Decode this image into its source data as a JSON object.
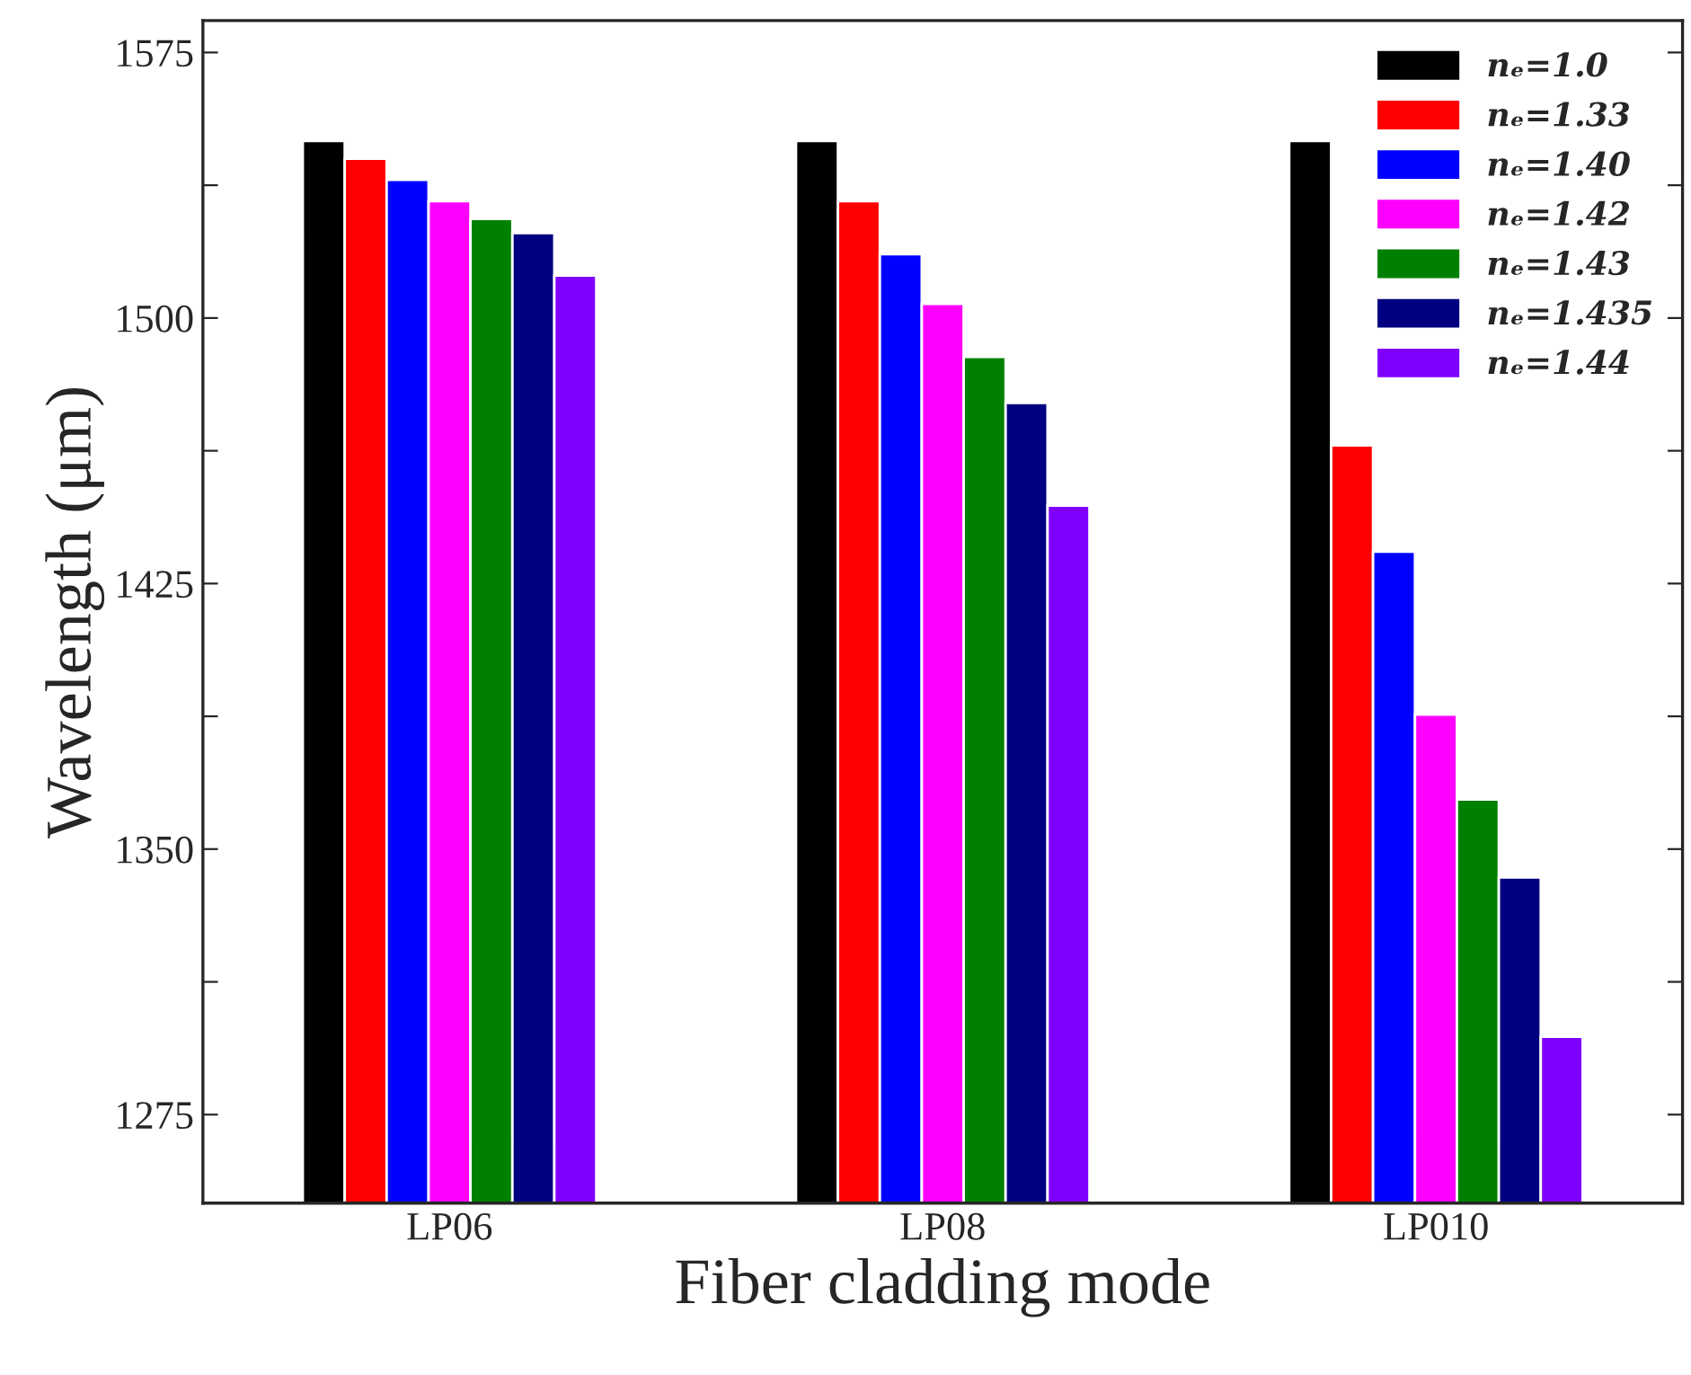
{
  "chart_data": {
    "type": "bar",
    "xlabel": "Fiber cladding mode",
    "ylabel": "Wavelength (μm)",
    "categories": [
      "LP06",
      "LP08",
      "LP010"
    ],
    "series": [
      {
        "name": "nₑ=1.0",
        "color": "#000000",
        "values": [
          1550,
          1550,
          1550
        ]
      },
      {
        "name": "nₑ=1.33",
        "color": "#ff0000",
        "values": [
          1545,
          1533,
          1464
        ]
      },
      {
        "name": "nₑ=1.40",
        "color": "#0000ff",
        "values": [
          1539,
          1518,
          1434
        ]
      },
      {
        "name": "nₑ=1.42",
        "color": "#ff00ff",
        "values": [
          1533,
          1504,
          1388
        ]
      },
      {
        "name": "nₑ=1.43",
        "color": "#008000",
        "values": [
          1528,
          1489,
          1364
        ]
      },
      {
        "name": "nₑ=1.435",
        "color": "#000080",
        "values": [
          1524,
          1476,
          1342
        ]
      },
      {
        "name": "nₑ=1.44",
        "color": "#8000ff",
        "values": [
          1512,
          1447,
          1297
        ]
      }
    ],
    "ylim": [
      1250,
      1584
    ],
    "yticks": [
      {
        "value": 1275,
        "label": "1275"
      },
      {
        "value": 1312.5,
        "label": null
      },
      {
        "value": 1350,
        "label": "1350"
      },
      {
        "value": 1387.5,
        "label": null
      },
      {
        "value": 1425,
        "label": "1425"
      },
      {
        "value": 1462.5,
        "label": null
      },
      {
        "value": 1500,
        "label": "1500"
      },
      {
        "value": 1537.5,
        "label": null
      },
      {
        "value": 1575,
        "label": "1575"
      }
    ],
    "grid": false,
    "legend": "top right"
  }
}
